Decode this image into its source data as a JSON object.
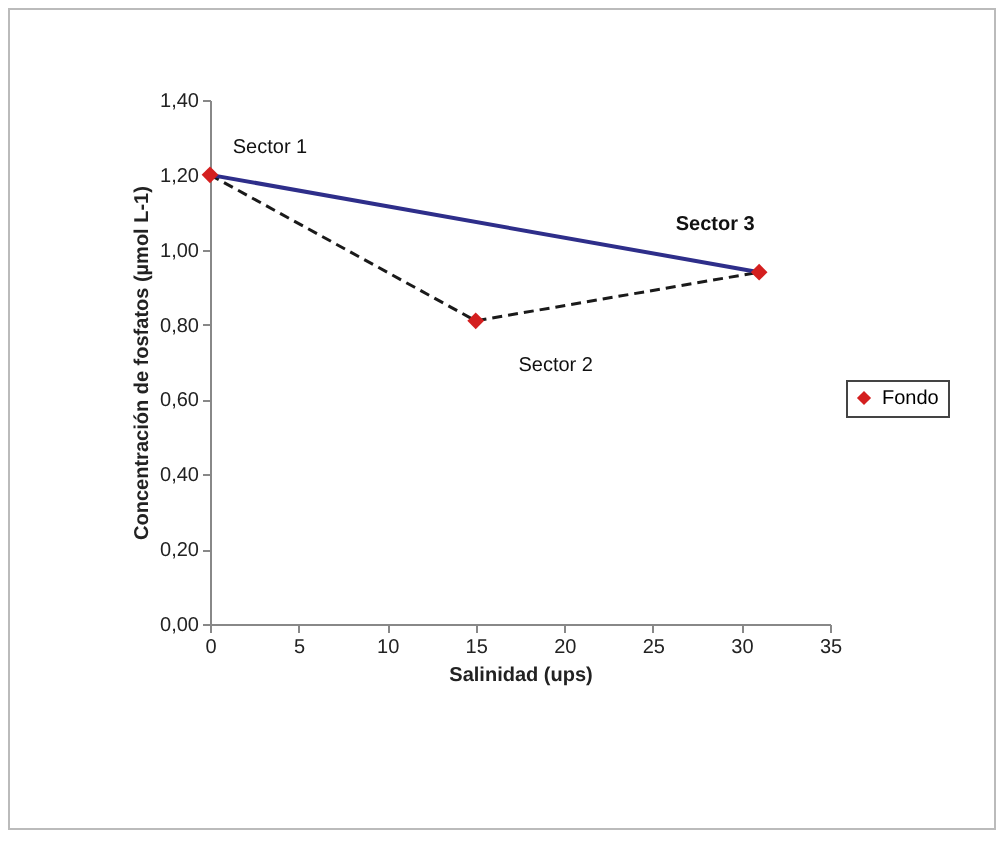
{
  "chart_data": {
    "type": "line",
    "xlabel": "Salinidad (ups)",
    "ylabel": "Concentración de fosfatos (µmol L-1)",
    "series": [
      {
        "color": "#1a1a1a",
        "line_style": "dashed",
        "marker": "none",
        "x": [
          0,
          15,
          31
        ],
        "values": [
          1.2,
          0.81,
          0.94
        ]
      },
      {
        "type": "line",
        "color": "#2e2e8a",
        "line_style": "solid",
        "marker": "none",
        "x": [
          0,
          31
        ],
        "values": [
          1.2,
          0.94
        ]
      },
      {
        "type": "scatter",
        "name": "Fondo",
        "color": "#d41f1f",
        "marker": "diamond",
        "x": [
          0,
          15,
          31
        ],
        "values": [
          1.2,
          0.81,
          0.94
        ]
      }
    ],
    "annotations": [
      {
        "text": "Sector 1",
        "x": 0,
        "y": 1.2
      },
      {
        "text": "Sector 2",
        "x": 15,
        "y": 0.81
      },
      {
        "text": "Sector 3",
        "x": 31,
        "y": 0.94
      }
    ],
    "xlim": [
      0,
      35
    ],
    "xticks": [
      0,
      5,
      10,
      15,
      20,
      25,
      30,
      35
    ],
    "ylim": [
      0,
      1.4
    ],
    "yticks": [
      {
        "value": 0,
        "label": "0,00"
      },
      {
        "value": 0.2,
        "label": "0,20"
      },
      {
        "value": 0.4,
        "label": "0,40"
      },
      {
        "value": 0.6,
        "label": "0,60"
      },
      {
        "value": 0.8,
        "label": "0,80"
      },
      {
        "value": 1.0,
        "label": "1,00"
      },
      {
        "value": 1.2,
        "label": "1,20"
      },
      {
        "value": 1.4,
        "label": "1,40"
      }
    ],
    "grid": false,
    "legend": "right"
  }
}
